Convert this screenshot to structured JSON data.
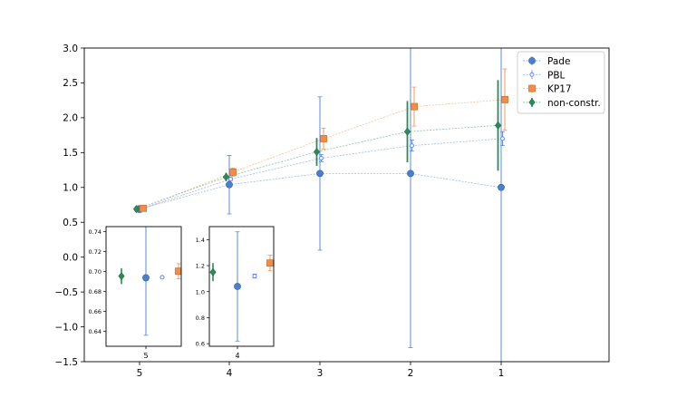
{
  "chart_data": [
    {
      "type": "scatter",
      "x_categories": [
        "5",
        "4",
        "3",
        "2",
        "1"
      ],
      "ylim": [
        -1.5,
        3.0
      ],
      "yticks": [
        "−1.5",
        "−1.0",
        "−0.5",
        "0.0",
        "0.5",
        "1.0",
        "1.5",
        "2.0",
        "2.5",
        "3.0"
      ],
      "legend_position": "top-right",
      "grid": false,
      "series": [
        {
          "name": "Pade",
          "color": "#4a7fd0",
          "marker": "circle",
          "x": [
            "5",
            "4",
            "3",
            "2",
            "1"
          ],
          "y": [
            0.69,
            1.04,
            1.2,
            1.2,
            1.0
          ],
          "err": [
            0.05,
            0.42,
            1.1,
            2.5,
            3.3
          ]
        },
        {
          "name": "PBL",
          "color": "#5a7fe8",
          "marker": "small-open-circle",
          "x": [
            "5",
            "4",
            "3",
            "2",
            "1"
          ],
          "y": [
            0.69,
            1.12,
            1.42,
            1.6,
            1.7
          ],
          "err": [
            0.005,
            0.02,
            0.05,
            0.08,
            0.1
          ]
        },
        {
          "name": "KP17",
          "color": "#f08d4a",
          "marker": "square",
          "x": [
            "5",
            "4",
            "3",
            "2",
            "1"
          ],
          "y": [
            0.7,
            1.22,
            1.7,
            2.16,
            2.26
          ],
          "err": [
            0.01,
            0.06,
            0.15,
            0.28,
            0.44
          ]
        },
        {
          "name": "non-constr.",
          "color": "#2e8b57",
          "marker": "diamond",
          "x": [
            "5",
            "4",
            "3",
            "2",
            "1"
          ],
          "y": [
            0.69,
            1.15,
            1.51,
            1.8,
            1.89
          ],
          "err": [
            0.01,
            0.06,
            0.2,
            0.44,
            0.65
          ]
        }
      ]
    },
    {
      "type": "scatter",
      "inset": true,
      "xlabel": "5",
      "ylim": [
        0.625,
        0.745
      ],
      "yticks": [
        "0.64",
        "0.66",
        "0.68",
        "0.70",
        "0.72",
        "0.74"
      ],
      "series": [
        {
          "name": "non-constr.",
          "y": 0.6953,
          "err": 0.008
        },
        {
          "name": "Pade",
          "y": 0.6937,
          "err": 0.0577
        },
        {
          "name": "PBL",
          "y": 0.6942,
          "err": 0.0005
        },
        {
          "name": "KP17",
          "y": 0.7003,
          "err": 0.0075
        }
      ]
    },
    {
      "type": "scatter",
      "inset": true,
      "xlabel": "4",
      "ylim": [
        0.58,
        1.5
      ],
      "yticks": [
        "0.6",
        "0.8",
        "1.0",
        "1.2",
        "1.4"
      ],
      "series": [
        {
          "name": "non-constr.",
          "y": 1.15,
          "err": 0.07
        },
        {
          "name": "Pade",
          "y": 1.04,
          "err": 0.42
        },
        {
          "name": "PBL",
          "y": 1.12,
          "err": 0.015
        },
        {
          "name": "KP17",
          "y": 1.22,
          "err": 0.06
        }
      ]
    }
  ]
}
